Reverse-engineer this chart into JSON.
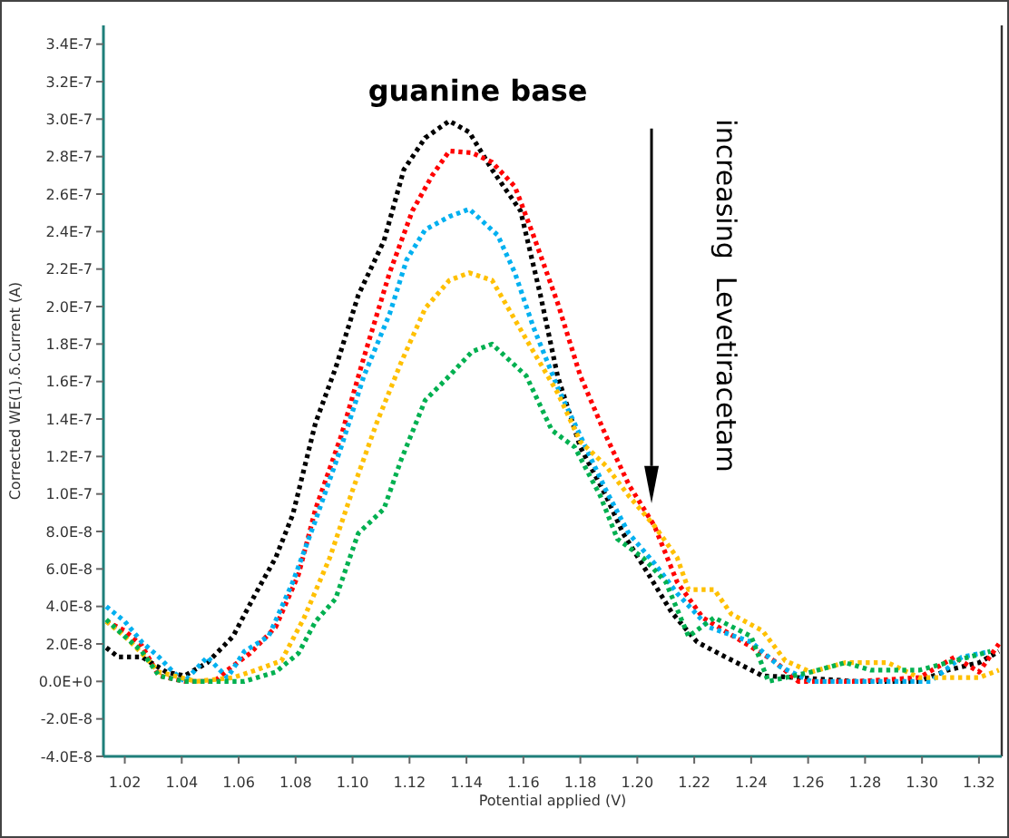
{
  "chart_data": {
    "type": "line",
    "xlabel": "Potential applied (V)",
    "ylabel": "Corrected WE(1).δ.Current (A)",
    "xlim": [
      1.0125,
      1.328
    ],
    "ylim": [
      -4e-08,
      3.5e-07
    ],
    "xticks": [
      {
        "value": 1.02,
        "label": "1.02"
      },
      {
        "value": 1.04,
        "label": "1.04"
      },
      {
        "value": 1.06,
        "label": "1.06"
      },
      {
        "value": 1.08,
        "label": "1.08"
      },
      {
        "value": 1.1,
        "label": "1.10"
      },
      {
        "value": 1.12,
        "label": "1.12"
      },
      {
        "value": 1.14,
        "label": "1.14"
      },
      {
        "value": 1.16,
        "label": "1.16"
      },
      {
        "value": 1.18,
        "label": "1.18"
      },
      {
        "value": 1.2,
        "label": "1.20"
      },
      {
        "value": 1.22,
        "label": "1.22"
      },
      {
        "value": 1.24,
        "label": "1.24"
      },
      {
        "value": 1.26,
        "label": "1.26"
      },
      {
        "value": 1.28,
        "label": "1.28"
      },
      {
        "value": 1.3,
        "label": "1.30"
      },
      {
        "value": 1.32,
        "label": "1.32"
      }
    ],
    "yticks": [
      {
        "value": -4e-08,
        "label": "-4.0E-8"
      },
      {
        "value": -2e-08,
        "label": "-2.0E-8"
      },
      {
        "value": 0,
        "label": "0.0E+0"
      },
      {
        "value": 2e-08,
        "label": "2.0E-8"
      },
      {
        "value": 4e-08,
        "label": "4.0E-8"
      },
      {
        "value": 6e-08,
        "label": "6.0E-8"
      },
      {
        "value": 8e-08,
        "label": "8.0E-8"
      },
      {
        "value": 1e-07,
        "label": "1.0E-7"
      },
      {
        "value": 1.2e-07,
        "label": "1.2E-7"
      },
      {
        "value": 1.4e-07,
        "label": "1.4E-7"
      },
      {
        "value": 1.6e-07,
        "label": "1.6E-7"
      },
      {
        "value": 1.8e-07,
        "label": "1.8E-7"
      },
      {
        "value": 2e-07,
        "label": "2.0E-7"
      },
      {
        "value": 2.2e-07,
        "label": "2.2E-7"
      },
      {
        "value": 2.4e-07,
        "label": "2.4E-7"
      },
      {
        "value": 2.6e-07,
        "label": "2.6E-7"
      },
      {
        "value": 2.8e-07,
        "label": "2.8E-7"
      },
      {
        "value": 3e-07,
        "label": "3.0E-7"
      },
      {
        "value": 3.2e-07,
        "label": "3.2E-7"
      },
      {
        "value": 3.4e-07,
        "label": "3.4E-7"
      }
    ],
    "marker": "none",
    "line_style": "dotted",
    "grid": false,
    "annotations": [
      "guanine base",
      "increasing  Levetiracetam"
    ],
    "series": [
      {
        "color": "#000000",
        "x": [
          1.0135,
          1.0177,
          1.026,
          1.0346,
          1.041,
          1.049,
          1.058,
          1.066,
          1.073,
          1.079,
          1.087,
          1.094,
          1.102,
          1.111,
          1.118,
          1.1255,
          1.134,
          1.141,
          1.149,
          1.159,
          1.166,
          1.172,
          1.18,
          1.189,
          1.195,
          1.204,
          1.212,
          1.221,
          1.231,
          1.244,
          1.2565,
          1.277,
          1.299,
          1.309,
          1.32,
          1.327
        ],
        "values": [
          1.8e-08,
          1.3e-08,
          1.3e-08,
          5e-09,
          3e-09,
          1e-08,
          2.4e-08,
          4.7e-08,
          6.6e-08,
          8.9e-08,
          1.38e-07,
          1.67e-07,
          2.06e-07,
          2.35e-07,
          2.73e-07,
          2.9e-07,
          2.99e-07,
          2.93e-07,
          2.73e-07,
          2.51e-07,
          2.06e-07,
          1.63e-07,
          1.25e-07,
          9.9e-08,
          7.9e-08,
          5.7e-08,
          3.7e-08,
          2.1e-08,
          1.3e-08,
          3e-09,
          2e-09,
          0,
          0,
          6e-09,
          1e-08,
          1.6e-08
        ]
      },
      {
        "color": "#ff0000",
        "x": [
          1.0135,
          1.02,
          1.026,
          1.032,
          1.041,
          1.0515,
          1.056,
          1.064,
          1.073,
          1.081,
          1.087,
          1.096,
          1.104,
          1.113,
          1.121,
          1.128,
          1.134,
          1.142,
          1.149,
          1.157,
          1.1635,
          1.172,
          1.18,
          1.189,
          1.197,
          1.206,
          1.214,
          1.223,
          1.235,
          1.248,
          1.2565,
          1.277,
          1.299,
          1.3115,
          1.32,
          1.327
        ],
        "values": [
          3.2e-08,
          2.7e-08,
          1.9e-08,
          3e-09,
          0,
          0,
          6e-09,
          1.5e-08,
          2.9e-08,
          5.7e-08,
          9.2e-08,
          1.31e-07,
          1.73e-07,
          2.18e-07,
          2.51e-07,
          2.7e-07,
          2.83e-07,
          2.82e-07,
          2.77e-07,
          2.64e-07,
          2.38e-07,
          2.02e-07,
          1.63e-07,
          1.31e-07,
          1.05e-07,
          8.3e-08,
          5.3e-08,
          3.4e-08,
          2.3e-08,
          1.1e-08,
          0,
          0,
          2e-09,
          1.3e-08,
          5e-09,
          2e-08
        ]
      },
      {
        "color": "#00b0f0",
        "x": [
          1.0135,
          1.02,
          1.026,
          1.032,
          1.037,
          1.041,
          1.049,
          1.056,
          1.062,
          1.0705,
          1.079,
          1.087,
          1.096,
          1.104,
          1.113,
          1.119,
          1.1255,
          1.134,
          1.141,
          1.151,
          1.157,
          1.1635,
          1.172,
          1.18,
          1.189,
          1.197,
          1.206,
          1.214,
          1.225,
          1.24,
          1.25,
          1.261,
          1.303,
          1.314,
          1.324
        ],
        "values": [
          4e-08,
          3.2e-08,
          2.1e-08,
          1.3e-08,
          5e-09,
          0,
          1.3e-08,
          2e-09,
          1.6e-08,
          2.4e-08,
          5.3e-08,
          8.6e-08,
          1.25e-07,
          1.63e-07,
          1.96e-07,
          2.25e-07,
          2.41e-07,
          2.48e-07,
          2.52e-07,
          2.38e-07,
          2.18e-07,
          1.89e-07,
          1.57e-07,
          1.31e-07,
          1.02e-07,
          7.9e-08,
          6.3e-08,
          4.7e-08,
          2.9e-08,
          2.1e-08,
          8e-09,
          0,
          0,
          1.3e-08,
          1.6e-08
        ]
      },
      {
        "color": "#ffc000",
        "x": [
          1.0135,
          1.02,
          1.026,
          1.032,
          1.045,
          1.058,
          1.066,
          1.075,
          1.083,
          1.092,
          1.1,
          1.1085,
          1.117,
          1.1255,
          1.134,
          1.141,
          1.149,
          1.157,
          1.1635,
          1.172,
          1.18,
          1.189,
          1.197,
          1.206,
          1.214,
          1.218,
          1.227,
          1.233,
          1.244,
          1.252,
          1.261,
          1.273,
          1.288,
          1.299,
          1.32,
          1.327
        ],
        "values": [
          3.2e-08,
          2.4e-08,
          1.5e-08,
          5e-09,
          0,
          2e-09,
          6e-09,
          1.1e-08,
          3.4e-08,
          6.6e-08,
          1.02e-07,
          1.38e-07,
          1.7e-07,
          1.99e-07,
          2.14e-07,
          2.18e-07,
          2.14e-07,
          1.93e-07,
          1.76e-07,
          1.54e-07,
          1.28e-07,
          1.15e-07,
          9.9e-08,
          8.3e-08,
          6.6e-08,
          4.9e-08,
          4.9e-08,
          3.6e-08,
          2.7e-08,
          1.1e-08,
          5e-09,
          1e-08,
          1e-08,
          2e-09,
          2e-09,
          6e-09
        ]
      },
      {
        "color": "#00b050",
        "x": [
          1.0135,
          1.02,
          1.026,
          1.032,
          1.041,
          1.062,
          1.073,
          1.081,
          1.087,
          1.094,
          1.102,
          1.111,
          1.117,
          1.1255,
          1.134,
          1.142,
          1.149,
          1.161,
          1.17,
          1.178,
          1.187,
          1.193,
          1.202,
          1.21,
          1.218,
          1.227,
          1.24,
          1.246,
          1.261,
          1.273,
          1.282,
          1.299,
          1.3115,
          1.324
        ],
        "values": [
          3.3e-08,
          2.4e-08,
          1.6e-08,
          3e-09,
          0,
          0,
          5e-09,
          1.5e-08,
          3.2e-08,
          4.4e-08,
          7.9e-08,
          9.2e-08,
          1.18e-07,
          1.5e-07,
          1.63e-07,
          1.76e-07,
          1.8e-07,
          1.63e-07,
          1.34e-07,
          1.25e-07,
          9.9e-08,
          7.6e-08,
          6.6e-08,
          5.3e-08,
          2.4e-08,
          3.4e-08,
          2.4e-08,
          0,
          5e-09,
          1e-08,
          6e-09,
          6e-09,
          1.1e-08,
          1.6e-08
        ]
      }
    ]
  }
}
